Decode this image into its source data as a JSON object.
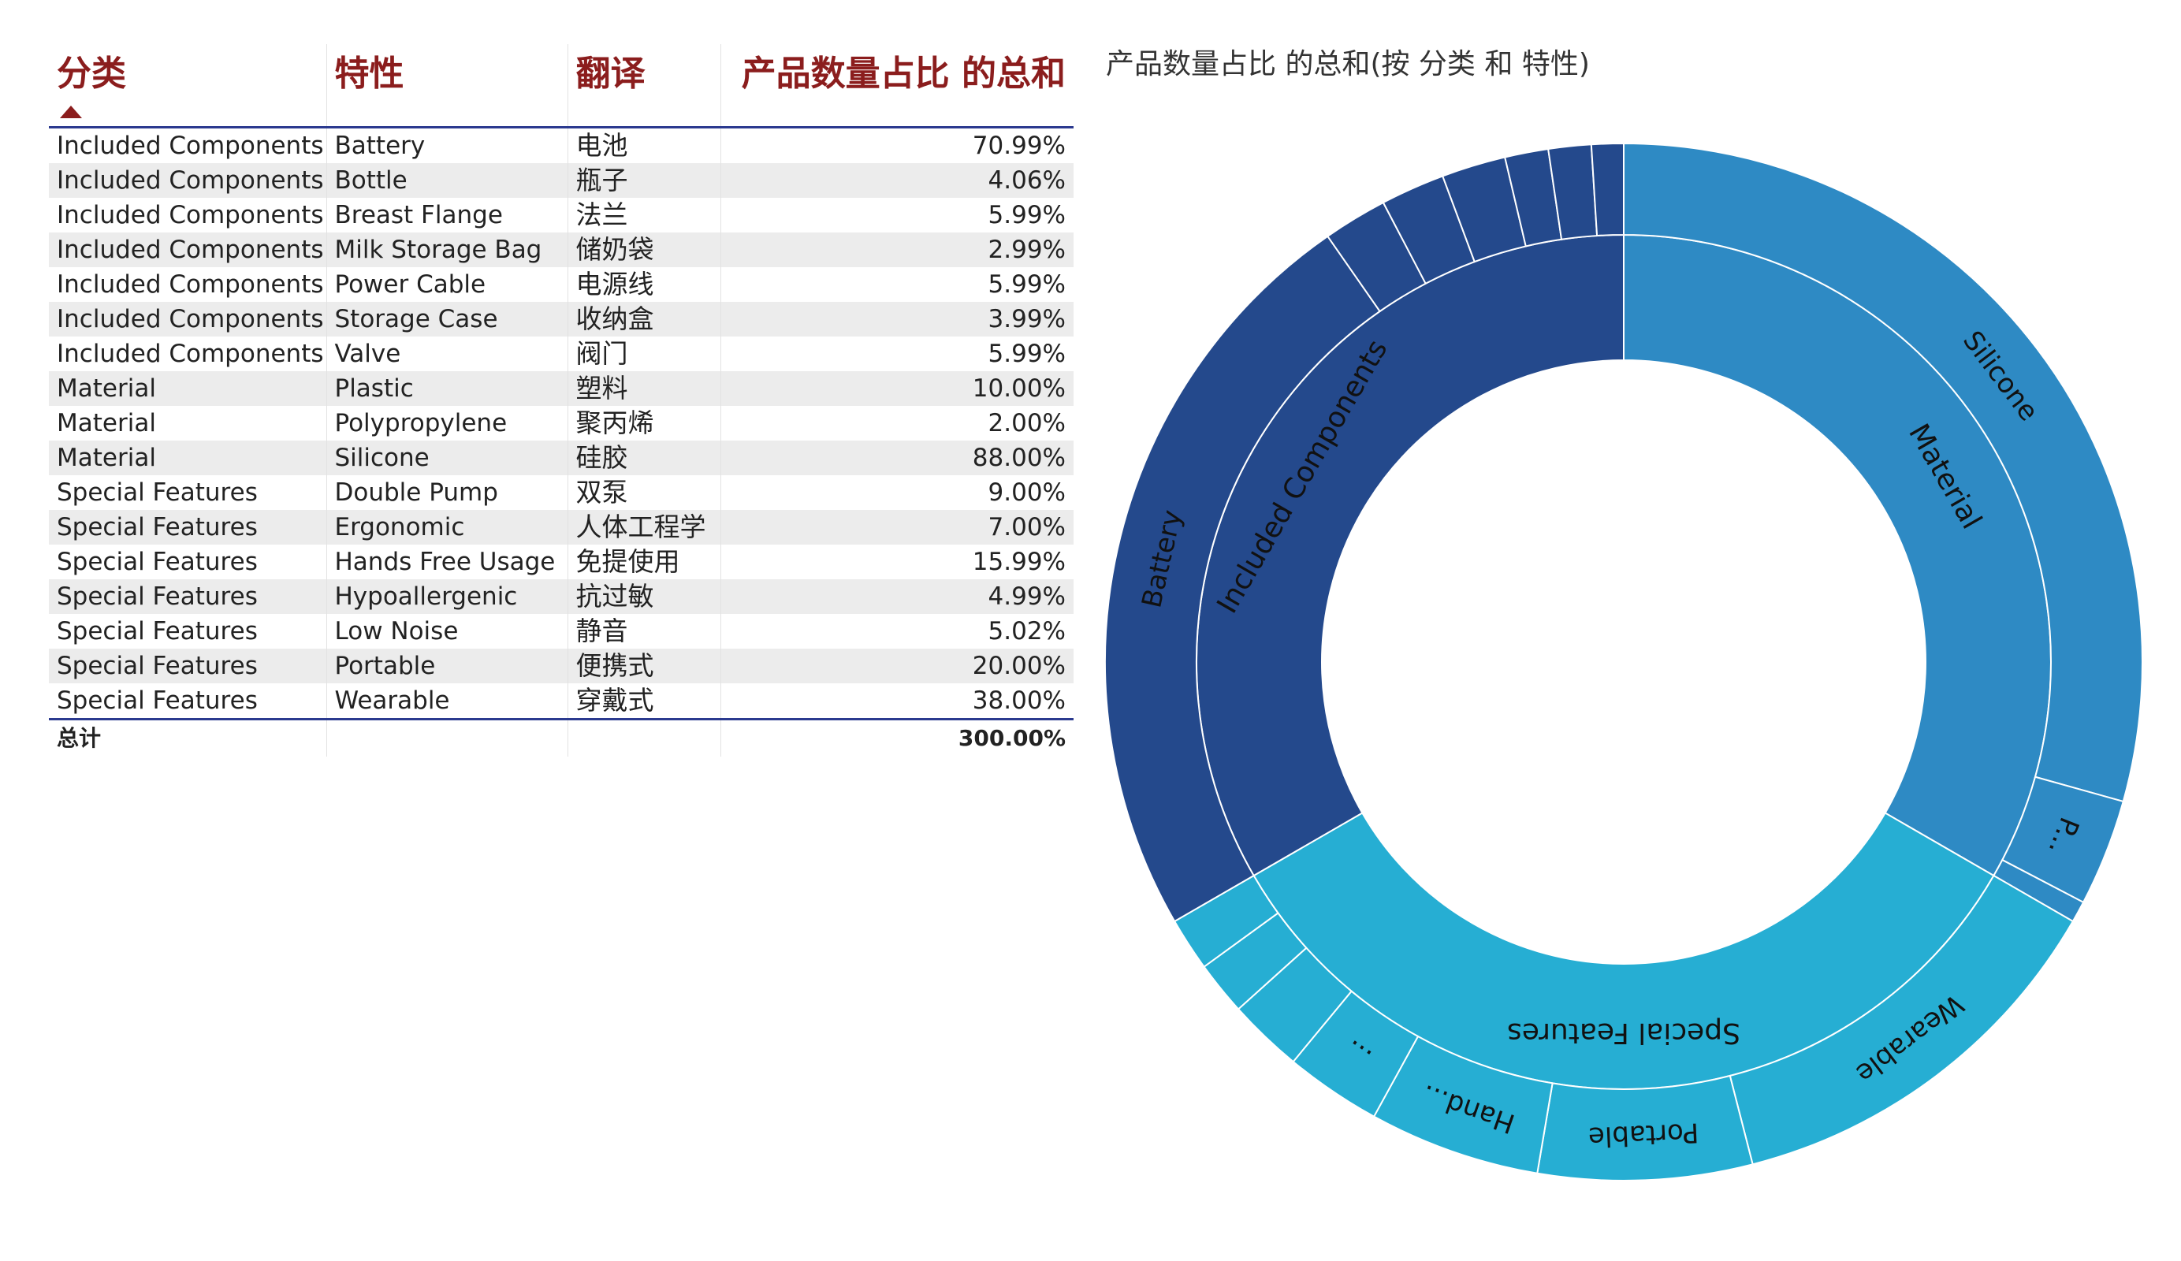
{
  "table": {
    "headers": [
      "分类",
      "特性",
      "翻译",
      "产品数量占比 的总和"
    ],
    "rows": [
      [
        "Included Components",
        "Battery",
        "电池",
        "70.99%"
      ],
      [
        "Included Components",
        "Bottle",
        "瓶子",
        "4.06%"
      ],
      [
        "Included Components",
        "Breast Flange",
        "法兰",
        "5.99%"
      ],
      [
        "Included Components",
        "Milk Storage Bag",
        "储奶袋",
        "2.99%"
      ],
      [
        "Included Components",
        "Power Cable",
        "电源线",
        "5.99%"
      ],
      [
        "Included Components",
        "Storage Case",
        "收纳盒",
        "3.99%"
      ],
      [
        "Included Components",
        "Valve",
        "阀门",
        "5.99%"
      ],
      [
        "Material",
        "Plastic",
        "塑料",
        "10.00%"
      ],
      [
        "Material",
        "Polypropylene",
        "聚丙烯",
        "2.00%"
      ],
      [
        "Material",
        "Silicone",
        "硅胶",
        "88.00%"
      ],
      [
        "Special Features",
        "Double Pump",
        "双泵",
        "9.00%"
      ],
      [
        "Special Features",
        "Ergonomic",
        "人体工程学",
        "7.00%"
      ],
      [
        "Special Features",
        "Hands Free Usage",
        "免提使用",
        "15.99%"
      ],
      [
        "Special Features",
        "Hypoallergenic",
        "抗过敏",
        "4.99%"
      ],
      [
        "Special Features",
        "Low Noise",
        "静音",
        "5.02%"
      ],
      [
        "Special Features",
        "Portable",
        "便携式",
        "20.00%"
      ],
      [
        "Special Features",
        "Wearable",
        "穿戴式",
        "38.00%"
      ]
    ],
    "total_label": "总计",
    "total_value": "300.00%"
  },
  "chart_data": {
    "type": "sunburst",
    "title": "产品数量占比 的总和(按 分类 和 特性)",
    "colors": {
      "Material": "#2e8ac4",
      "Special Features": "#26aed3",
      "Included Components": "#24498c"
    },
    "inner": [
      {
        "name": "Material",
        "label": "Material",
        "value": 100.0
      },
      {
        "name": "Special Features",
        "label": "Special Features",
        "value": 100.0
      },
      {
        "name": "Included Components",
        "label": "Included Components",
        "value": 100.0
      }
    ],
    "outer": [
      {
        "parent": "Material",
        "name": "Silicone",
        "label": "Silicone",
        "value": 88.0
      },
      {
        "parent": "Material",
        "name": "Plastic",
        "label": "P...",
        "value": 10.0
      },
      {
        "parent": "Material",
        "name": "Polypropylene",
        "label": "",
        "value": 2.0
      },
      {
        "parent": "Special Features",
        "name": "Wearable",
        "label": "Wearable",
        "value": 38.0
      },
      {
        "parent": "Special Features",
        "name": "Portable",
        "label": "Portable",
        "value": 20.0
      },
      {
        "parent": "Special Features",
        "name": "Hands Free Usage",
        "label": "Hand...",
        "value": 15.99
      },
      {
        "parent": "Special Features",
        "name": "Double Pump",
        "label": "...",
        "value": 9.0
      },
      {
        "parent": "Special Features",
        "name": "Ergonomic",
        "label": "",
        "value": 7.0
      },
      {
        "parent": "Special Features",
        "name": "Low Noise",
        "label": "",
        "value": 5.02
      },
      {
        "parent": "Special Features",
        "name": "Hypoallergenic",
        "label": "",
        "value": 4.99
      },
      {
        "parent": "Included Components",
        "name": "Battery",
        "label": "Battery",
        "value": 70.99
      },
      {
        "parent": "Included Components",
        "name": "Breast Flange",
        "label": "",
        "value": 5.99
      },
      {
        "parent": "Included Components",
        "name": "Power Cable",
        "label": "",
        "value": 5.99
      },
      {
        "parent": "Included Components",
        "name": "Valve",
        "label": "",
        "value": 5.99
      },
      {
        "parent": "Included Components",
        "name": "Bottle",
        "label": "",
        "value": 4.06
      },
      {
        "parent": "Included Components",
        "name": "Storage Case",
        "label": "",
        "value": 3.99
      },
      {
        "parent": "Included Components",
        "name": "Milk Storage Bag",
        "label": "",
        "value": 2.99
      }
    ]
  }
}
